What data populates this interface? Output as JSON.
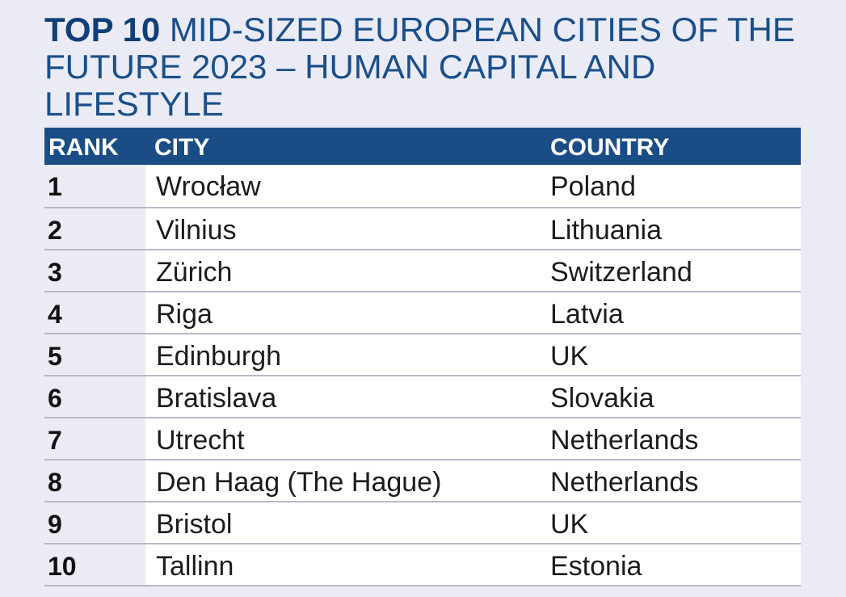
{
  "title": {
    "lead": "TOP 10",
    "rest": " MID-SIZED EUROPEAN CITIES OF THE FUTURE 2023 – HUMAN CAPITAL AND LIFESTYLE"
  },
  "table": {
    "headers": {
      "rank": "RANK",
      "city": "CITY",
      "country": "COUNTRY"
    },
    "rows": [
      {
        "rank": "1",
        "city": "Wrocław",
        "country": "Poland"
      },
      {
        "rank": "2",
        "city": "Vilnius",
        "country": "Lithuania"
      },
      {
        "rank": "3",
        "city": "Zürich",
        "country": "Switzerland"
      },
      {
        "rank": "4",
        "city": "Riga",
        "country": "Latvia"
      },
      {
        "rank": "5",
        "city": "Edinburgh",
        "country": "UK"
      },
      {
        "rank": "6",
        "city": "Bratislava",
        "country": "Slovakia"
      },
      {
        "rank": "7",
        "city": "Utrecht",
        "country": "Netherlands"
      },
      {
        "rank": "8",
        "city": "Den Haag (The Hague)",
        "country": "Netherlands"
      },
      {
        "rank": "9",
        "city": "Bristol",
        "country": "UK"
      },
      {
        "rank": "10",
        "city": "Tallinn",
        "country": "Estonia"
      }
    ]
  },
  "colors": {
    "header_bg": "#1a4d86",
    "title": "#1a4f8a",
    "page_bg": "#ebebf5"
  }
}
